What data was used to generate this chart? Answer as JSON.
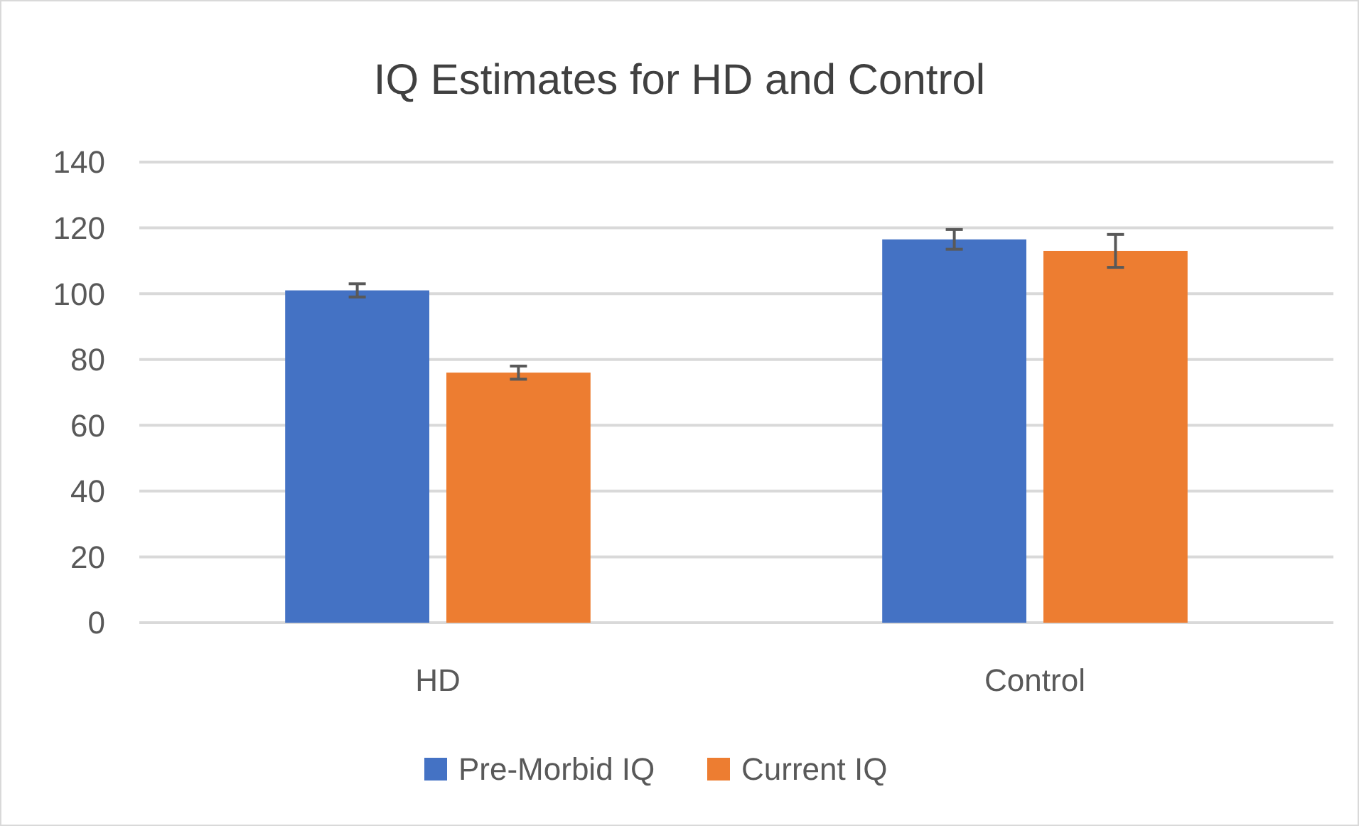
{
  "chart_data": {
    "type": "bar",
    "title": "IQ Estimates for HD and Control",
    "categories": [
      "HD",
      "Control"
    ],
    "series": [
      {
        "name": "Pre-Morbid IQ",
        "color": "#4472c4",
        "values": [
          101,
          116.5
        ],
        "errors": [
          2,
          3
        ]
      },
      {
        "name": "Current IQ",
        "color": "#ed7d31",
        "values": [
          76,
          113
        ],
        "errors": [
          2,
          5
        ]
      }
    ],
    "ylim": [
      0,
      140
    ],
    "yticks": [
      0,
      20,
      40,
      60,
      80,
      100,
      120,
      140
    ],
    "grid": "y",
    "legend": "bottom"
  }
}
